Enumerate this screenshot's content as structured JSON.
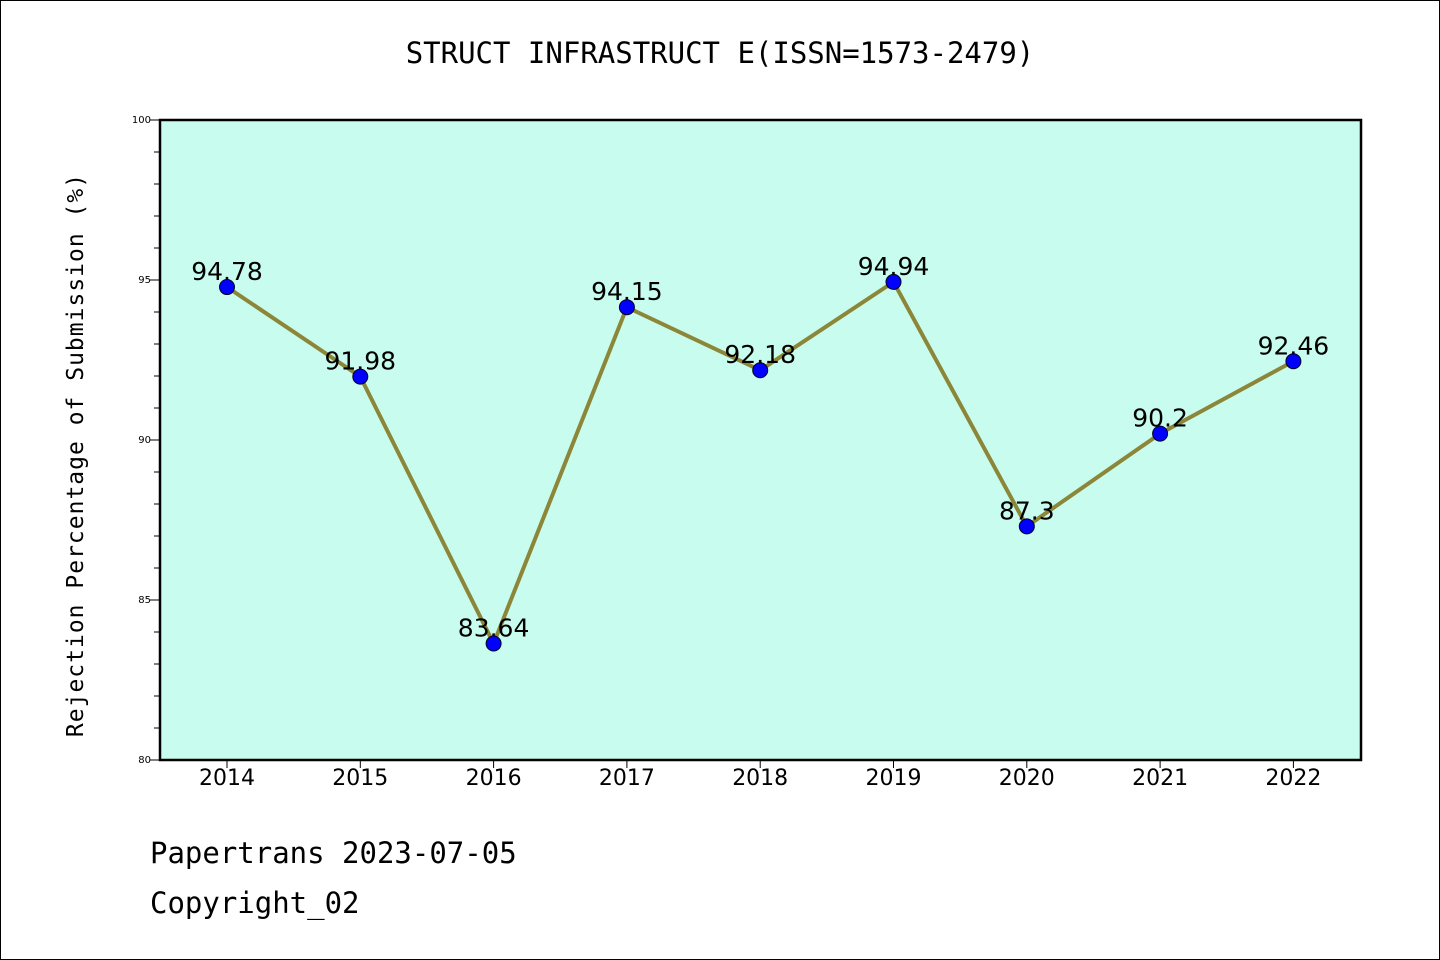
{
  "chart_data": {
    "type": "line",
    "title": "STRUCT INFRASTRUCT E(ISSN=1573-2479)",
    "xlabel": "",
    "ylabel": "Rejection Percentage of Submission (%)",
    "categories": [
      "2014",
      "2015",
      "2016",
      "2017",
      "2018",
      "2019",
      "2020",
      "2021",
      "2022"
    ],
    "series": [
      {
        "values": [
          94.78,
          91.98,
          83.64,
          94.15,
          92.18,
          94.94,
          87.3,
          90.2,
          92.46
        ],
        "data_labels": [
          "94.78",
          "91.98",
          "83.64",
          "94.15",
          "92.18",
          "94.94",
          "87.3",
          "90.2",
          "92.46"
        ]
      }
    ],
    "ylim": [
      80,
      100
    ],
    "yticks": [
      "80",
      "85",
      "90",
      "95",
      "100"
    ],
    "grid": false,
    "legend": "none"
  },
  "colors": {
    "plot_background": "#c8fcee",
    "line": "#8c8638",
    "marker": "#0000ff"
  },
  "footer": {
    "line1": "Papertrans 2023-07-05",
    "line2": "Copyright_02"
  }
}
